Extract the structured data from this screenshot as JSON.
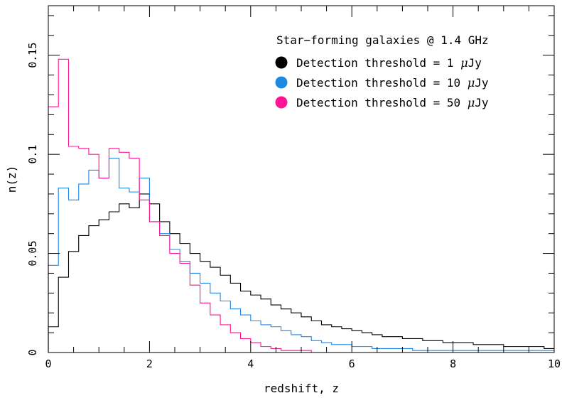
{
  "chart_data": {
    "type": "histogram",
    "title": "",
    "xlabel": "redshift, z",
    "ylabel": "n(z)",
    "xlim": [
      0,
      10
    ],
    "ylim": [
      0,
      0.175
    ],
    "x_ticks": [
      0,
      2,
      4,
      6,
      8,
      10
    ],
    "x_tick_labels": [
      "0",
      "2",
      "4",
      "6",
      "8",
      "10"
    ],
    "y_ticks": [
      0,
      0.05,
      0.1,
      0.15
    ],
    "y_tick_labels": [
      "0",
      "0.05",
      "0.1",
      "0.15"
    ],
    "grid": false,
    "legend_position": "top-right",
    "legend_title": "Star−forming galaxies @ 1.4 GHz",
    "bin_width": 0.2,
    "series": [
      {
        "name": "Detection threshold = 1 μJy",
        "color": "#000000",
        "values": [
          0.013,
          0.038,
          0.051,
          0.059,
          0.064,
          0.067,
          0.071,
          0.075,
          0.073,
          0.08,
          0.075,
          0.066,
          0.06,
          0.055,
          0.05,
          0.046,
          0.043,
          0.039,
          0.035,
          0.031,
          0.029,
          0.027,
          0.024,
          0.022,
          0.02,
          0.018,
          0.016,
          0.014,
          0.013,
          0.012,
          0.011,
          0.01,
          0.009,
          0.008,
          0.008,
          0.007,
          0.007,
          0.006,
          0.006,
          0.005,
          0.005,
          0.005,
          0.004,
          0.004,
          0.004,
          0.003,
          0.003,
          0.003,
          0.003,
          0.002,
          0.002,
          0.002,
          0.002,
          0.002,
          0.002,
          0.002,
          0.002,
          0.002,
          0.002,
          0.002,
          0.002,
          0.002,
          0.001,
          0.001,
          0.001,
          0.001,
          0.001,
          0.001,
          0.001,
          0.001
        ]
      },
      {
        "name": "Detection threshold = 10 μJy",
        "color": "#1e88e5",
        "values": [
          0.044,
          0.083,
          0.077,
          0.085,
          0.092,
          0.088,
          0.098,
          0.083,
          0.081,
          0.088,
          0.066,
          0.06,
          0.052,
          0.046,
          0.04,
          0.035,
          0.03,
          0.026,
          0.022,
          0.019,
          0.016,
          0.014,
          0.013,
          0.011,
          0.009,
          0.008,
          0.006,
          0.005,
          0.004,
          0.004,
          0.003,
          0.003,
          0.002,
          0.002,
          0.002,
          0.002,
          0.001,
          0.001,
          0.001,
          0.001,
          0.001,
          0.001,
          0.001,
          0.001,
          0.001,
          0.001,
          0.001,
          0.001,
          0.001,
          0.001,
          0.001,
          0.001,
          0.001,
          0.001,
          0.001,
          0.001,
          0.001,
          0.001,
          0.001,
          0.001,
          0.001,
          0.001,
          0.001,
          0.001,
          0.001,
          0.001,
          0.001,
          0.001,
          0.001,
          0.001
        ]
      },
      {
        "name": "Detection threshold = 50 μJy",
        "color": "#ff1493",
        "values": [
          0.124,
          0.148,
          0.104,
          0.103,
          0.1,
          0.088,
          0.103,
          0.101,
          0.098,
          0.077,
          0.066,
          0.059,
          0.05,
          0.045,
          0.034,
          0.025,
          0.019,
          0.014,
          0.01,
          0.007,
          0.005,
          0.003,
          0.002,
          0.001,
          0.001,
          0.001,
          0.0,
          0.0,
          0.0,
          0.0,
          0.0,
          0.0,
          0.0,
          0.0,
          0.0,
          0.0,
          0.0,
          0.0,
          0.0,
          0.0,
          0.0,
          0.0,
          0.0,
          0.0,
          0.0,
          0.0,
          0.0,
          0.0,
          0.0,
          0.0
        ]
      }
    ]
  }
}
